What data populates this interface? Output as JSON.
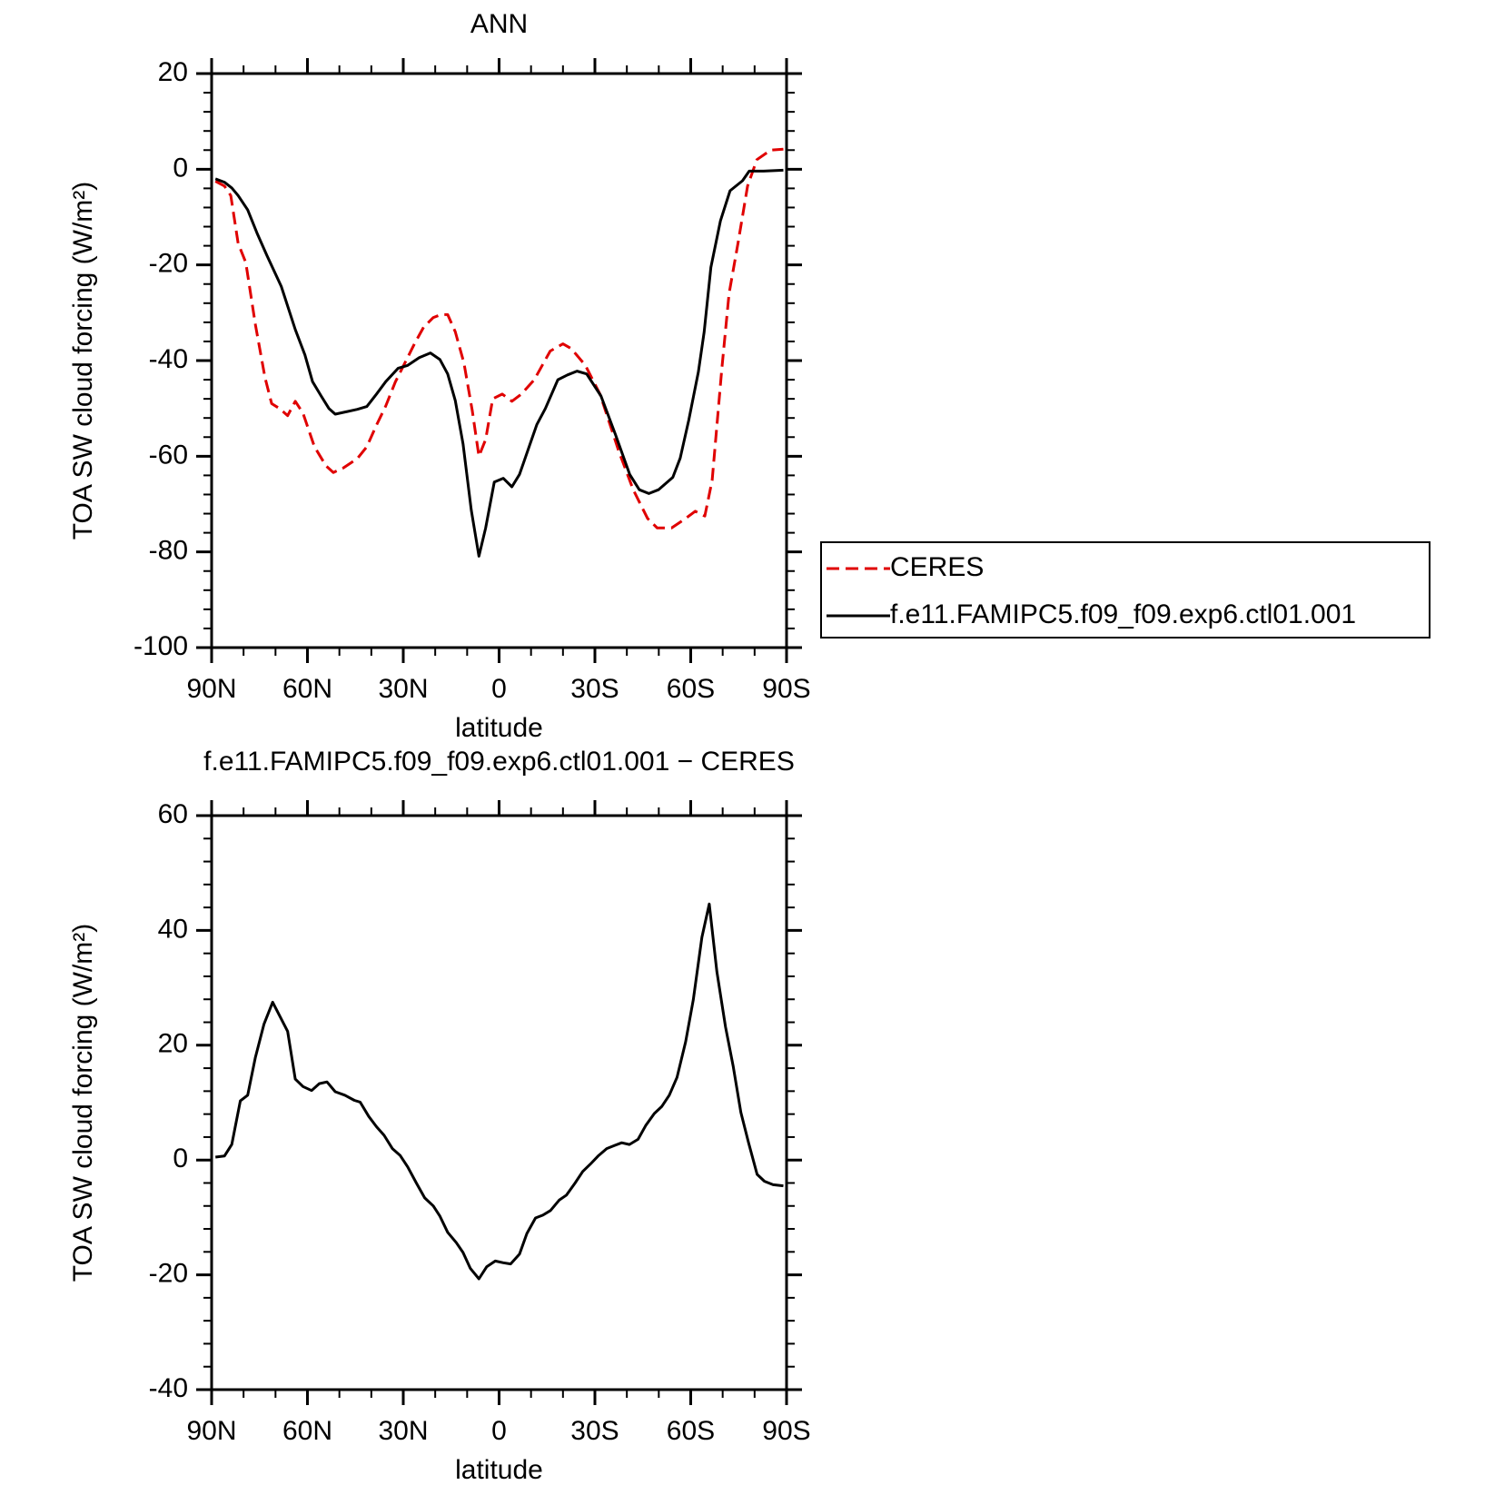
{
  "chart_data": [
    {
      "type": "line",
      "title": "ANN",
      "xlabel": "latitude",
      "ylabel": "TOA SW cloud forcing (W/m²)",
      "xlim": [
        90,
        -90
      ],
      "xticks": [
        {
          "value": 90,
          "label": "90N"
        },
        {
          "value": 60,
          "label": "60N"
        },
        {
          "value": 30,
          "label": "30N"
        },
        0,
        {
          "value": -30,
          "label": "30S"
        },
        {
          "value": -60,
          "label": "60S"
        },
        {
          "value": -90,
          "label": "90S"
        }
      ],
      "xminor": [
        80,
        70,
        50,
        40,
        20,
        10,
        -10,
        -20,
        -40,
        -50,
        -70,
        -80
      ],
      "ylim": [
        -100,
        20
      ],
      "yticks": [
        -100,
        -80,
        -60,
        -40,
        -20,
        0,
        20
      ],
      "yminor": [
        -96,
        -92,
        -88,
        -84,
        -76,
        -72,
        -68,
        -64,
        -56,
        -52,
        -48,
        -44,
        -36,
        -32,
        -28,
        -24,
        -16,
        -12,
        -8,
        -4,
        4,
        8,
        12,
        16
      ],
      "legend": "outside right",
      "series": [
        {
          "name": "CERES",
          "color": "#e00000",
          "dashed": true,
          "x": [
            88.8,
            86,
            84,
            81.7,
            79.3,
            76.3,
            73.3,
            71.2,
            68.8,
            66.2,
            63.8,
            61.4,
            57.8,
            54.2,
            51.9,
            48.9,
            44.4,
            41.4,
            38.4,
            35.5,
            32.5,
            29.5,
            26.5,
            23.6,
            20.6,
            18.2,
            16.1,
            13.7,
            11,
            8.4,
            6.3,
            4.2,
            2,
            -1,
            -4,
            -7,
            -11,
            -16,
            -20,
            -22.6,
            -27,
            -31.6,
            -37.5,
            -42,
            -46.5,
            -49.5,
            -54,
            -58.4,
            -61.4,
            -64.4,
            -66.7,
            -69.7,
            -72,
            -74.8,
            -77.8,
            -80.7,
            -85,
            -89
          ],
          "values": [
            -2.5,
            -3.5,
            -5.5,
            -15.5,
            -19.5,
            -32.5,
            -43.5,
            -49,
            -50,
            -51.5,
            -48.5,
            -51,
            -58,
            -62,
            -63.4,
            -62.5,
            -60.5,
            -58,
            -53.5,
            -49.5,
            -44.5,
            -40.5,
            -36.5,
            -33,
            -31,
            -30.4,
            -30.4,
            -34,
            -40.5,
            -50.5,
            -60,
            -56.5,
            -48,
            -47,
            -48.5,
            -47,
            -44,
            -38,
            -36.5,
            -37.5,
            -41,
            -47,
            -59,
            -67,
            -73,
            -75,
            -75,
            -73,
            -71.5,
            -72.5,
            -65,
            -42,
            -26,
            -15.5,
            -3.5,
            2,
            4,
            4.2
          ]
        },
        {
          "name": "f.e11.FAMIPC5.f09_f09.exp6.ctl01.001",
          "color": "#000000",
          "dashed": false,
          "x": [
            88.8,
            86,
            83.7,
            81.7,
            78.7,
            75.7,
            72.7,
            68.2,
            63.8,
            60.8,
            58.4,
            55.7,
            53.3,
            51.3,
            44.4,
            41.4,
            38.4,
            35.5,
            31.6,
            28.6,
            25,
            21.5,
            18.5,
            16.1,
            13.7,
            11.3,
            8.7,
            6.3,
            4.2,
            1.5,
            -1.3,
            -4,
            -6.4,
            -9.4,
            -11.8,
            -14.5,
            -18.4,
            -21.4,
            -24.4,
            -27.4,
            -31.9,
            -36.4,
            -40.9,
            -43.9,
            -46.9,
            -49.9,
            -54.4,
            -56.7,
            -59.4,
            -62.4,
            -64.2,
            -66.3,
            -69.3,
            -72.3,
            -76.2,
            -78.3,
            -82.8,
            -89
          ],
          "values": [
            -2,
            -2.7,
            -3.9,
            -5.5,
            -8.5,
            -13.5,
            -18,
            -24.5,
            -33.5,
            -38.8,
            -44.4,
            -47.4,
            -50,
            -51.2,
            -50.2,
            -49.6,
            -47,
            -44.4,
            -41.6,
            -41,
            -39.4,
            -38.4,
            -39.8,
            -42.8,
            -48.4,
            -57.4,
            -71.3,
            -80.9,
            -75,
            -65.4,
            -64.6,
            -66.4,
            -63.8,
            -58,
            -53.4,
            -50,
            -44,
            -43,
            -42.2,
            -42.8,
            -47.4,
            -55.4,
            -63.8,
            -67,
            -67.8,
            -67,
            -64.4,
            -60.4,
            -52.4,
            -42.4,
            -34,
            -20.5,
            -10.8,
            -4.5,
            -2.4,
            -0.4,
            -0.4,
            -0.2
          ]
        }
      ]
    },
    {
      "type": "line",
      "title": "f.e11.FAMIPC5.f09_f09.exp6.ctl01.001 − CERES",
      "xlabel": "latitude",
      "ylabel": "TOA SW cloud forcing (W/m²)",
      "xlim": [
        90,
        -90
      ],
      "xticks": [
        {
          "value": 90,
          "label": "90N"
        },
        {
          "value": 60,
          "label": "60N"
        },
        {
          "value": 30,
          "label": "30N"
        },
        0,
        {
          "value": -30,
          "label": "30S"
        },
        {
          "value": -60,
          "label": "60S"
        },
        {
          "value": -90,
          "label": "90S"
        }
      ],
      "xminor": [
        80,
        70,
        50,
        40,
        20,
        10,
        -10,
        -20,
        -40,
        -50,
        -70,
        -80
      ],
      "ylim": [
        -40,
        60
      ],
      "yticks": [
        -40,
        -20,
        0,
        20,
        40,
        60
      ],
      "yminor": [
        -36,
        -32,
        -28,
        -24,
        -16,
        -12,
        -8,
        -4,
        4,
        8,
        12,
        16,
        24,
        28,
        32,
        36,
        44,
        48,
        52,
        56
      ],
      "series": [
        {
          "color": "#000000",
          "dashed": false,
          "x": [
            88.8,
            86,
            83.7,
            81,
            78.7,
            76.3,
            73.6,
            70.9,
            66.2,
            63.8,
            61.4,
            58.7,
            56.3,
            53.9,
            51.3,
            48.3,
            45.3,
            43.5,
            40.8,
            38.4,
            36,
            33.4,
            31,
            28.6,
            25.9,
            23.3,
            20.6,
            18.5,
            16.1,
            13.4,
            11.3,
            9,
            6.3,
            3.9,
            1.2,
            -1.3,
            -3.6,
            -6.4,
            -8.7,
            -11.4,
            -13.7,
            -16.1,
            -18.8,
            -21.1,
            -23.8,
            -26.2,
            -28.6,
            -31,
            -33.7,
            -36,
            -38.4,
            -40.8,
            -43.5,
            -45.9,
            -48.6,
            -50.9,
            -53.3,
            -55.7,
            -58.4,
            -60.8,
            -63.5,
            -65.8,
            -68.2,
            -70.9,
            -73.3,
            -75.7,
            -78.1,
            -80.8,
            -83.1,
            -85.8,
            -89
          ],
          "values": [
            0.5,
            0.7,
            2.7,
            10.3,
            11.3,
            17.9,
            23.7,
            27.5,
            22.4,
            14.1,
            12.8,
            12.1,
            13.3,
            13.6,
            11.9,
            11.3,
            10.4,
            10.1,
            7.6,
            5.8,
            4.3,
            2,
            0.8,
            -1.2,
            -4,
            -6.6,
            -8,
            -9.8,
            -12.6,
            -14.4,
            -16.1,
            -18.9,
            -20.7,
            -18.6,
            -17.6,
            -17.9,
            -18.1,
            -16.4,
            -12.8,
            -10.1,
            -9.6,
            -8.8,
            -7,
            -6.1,
            -4,
            -2,
            -0.7,
            0.7,
            2,
            2.5,
            3,
            2.7,
            3.6,
            6,
            8.1,
            9.3,
            11.3,
            14.4,
            20.6,
            27.9,
            38.8,
            44.6,
            32.8,
            23.2,
            16.3,
            8.3,
            3,
            -2.5,
            -3.7,
            -4.3,
            -4.5
          ]
        }
      ]
    }
  ]
}
